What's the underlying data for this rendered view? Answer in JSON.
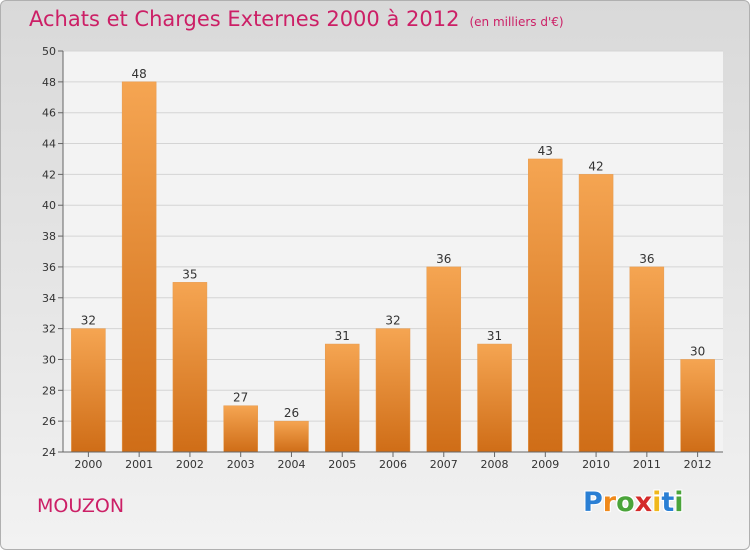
{
  "title": "Achats et Charges Externes 2000 à 2012",
  "subtitle": "(en milliers d'€)",
  "city": "MOUZON",
  "logo": {
    "letters": [
      "P",
      "r",
      "o",
      "x",
      "i",
      "t",
      "i"
    ],
    "colors": [
      "#2a7fd4",
      "#f08a1c",
      "#4aa43a",
      "#d42a2a",
      "#f0b81c",
      "#2a7fd4",
      "#4aa43a"
    ]
  },
  "chart_data": {
    "type": "bar",
    "categories": [
      "2000",
      "2001",
      "2002",
      "2003",
      "2004",
      "2005",
      "2006",
      "2007",
      "2008",
      "2009",
      "2010",
      "2011",
      "2012"
    ],
    "values": [
      32,
      48,
      35,
      27,
      26,
      31,
      32,
      36,
      31,
      43,
      42,
      36,
      30
    ],
    "ylim": [
      24,
      50
    ],
    "yticks": [
      24,
      26,
      28,
      30,
      32,
      34,
      36,
      38,
      40,
      42,
      44,
      46,
      48,
      50
    ],
    "grid": true,
    "bar_color_top": "#f5a552",
    "bar_color_bottom": "#cf6d17"
  }
}
